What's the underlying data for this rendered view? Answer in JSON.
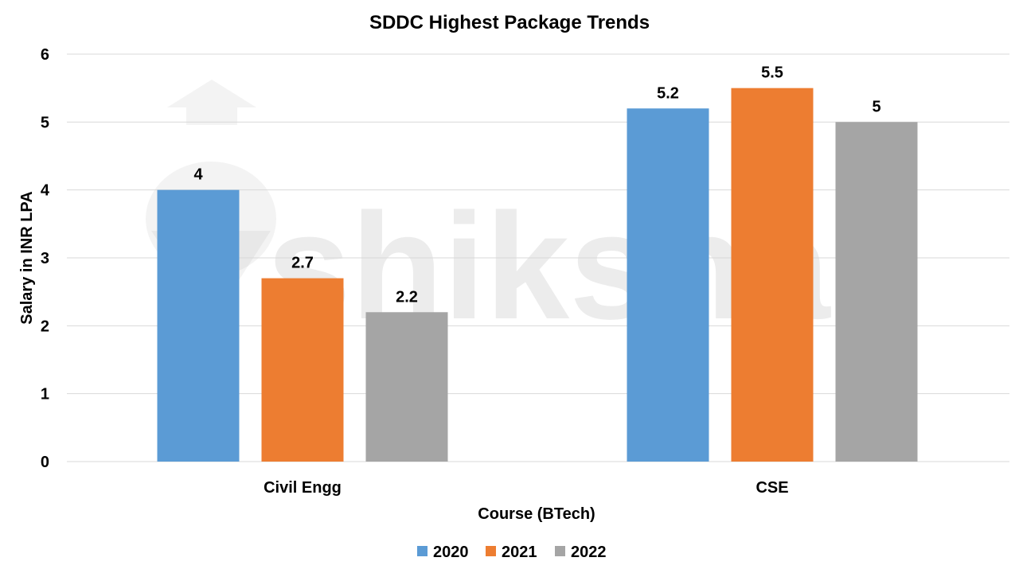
{
  "watermark": {
    "text": "shiksha"
  },
  "chart_data": {
    "type": "bar",
    "title": "SDDC Highest Package Trends",
    "xlabel": "Course (BTech)",
    "ylabel": "Salary in INR LPA",
    "categories": [
      "Civil Engg",
      "CSE"
    ],
    "series": [
      {
        "name": "2020",
        "color": "#5b9bd5",
        "values": [
          4,
          5.2
        ],
        "labels": [
          "4",
          "5.2"
        ]
      },
      {
        "name": "2021",
        "color": "#ed7d31",
        "values": [
          2.7,
          5.5
        ],
        "labels": [
          "2.7",
          "5.5"
        ]
      },
      {
        "name": "2022",
        "color": "#a5a5a5",
        "values": [
          2.2,
          5
        ],
        "labels": [
          "2.2",
          "5"
        ]
      }
    ],
    "ylim": [
      0,
      6
    ],
    "yticks": [
      0,
      1,
      2,
      3,
      4,
      5,
      6
    ],
    "ytick_labels": [
      "0",
      "1",
      "2",
      "3",
      "4",
      "5",
      "6"
    ],
    "grid": true,
    "legend_position": "bottom"
  }
}
